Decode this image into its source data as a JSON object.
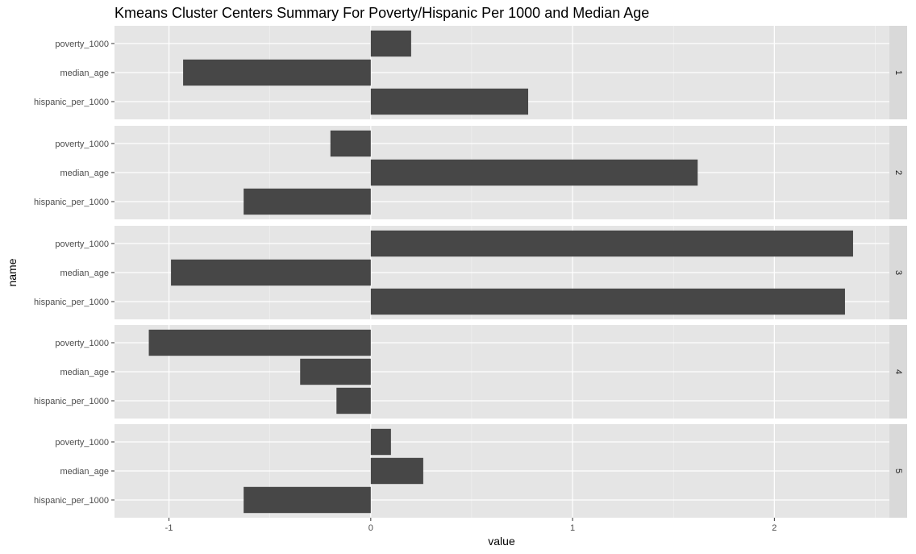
{
  "chart_data": {
    "type": "bar",
    "orientation": "horizontal",
    "faceted": true,
    "title": "Kmeans Cluster Centers Summary For Poverty/Hispanic Per 1000 and Median Age",
    "xlabel": "value",
    "ylabel": "name",
    "xlim": [
      -1.27,
      2.57
    ],
    "x_ticks": [
      -1,
      0,
      1,
      2
    ],
    "x_tick_labels": [
      "-1",
      "0",
      "1",
      "2"
    ],
    "categories": [
      "poverty_1000",
      "median_age",
      "hispanic_per_1000"
    ],
    "grid": true,
    "bar_color": "#474747",
    "panel_color": "#e5e5e5",
    "strip_color": "#d9d9d9",
    "facets": [
      {
        "label": "1",
        "values": [
          0.2,
          -0.93,
          0.78
        ]
      },
      {
        "label": "2",
        "values": [
          -0.2,
          1.62,
          -0.63
        ]
      },
      {
        "label": "3",
        "values": [
          2.39,
          -0.99,
          2.35
        ]
      },
      {
        "label": "4",
        "values": [
          -1.1,
          -0.35,
          -0.17
        ]
      },
      {
        "label": "5",
        "values": [
          0.1,
          0.26,
          -0.63
        ]
      }
    ]
  }
}
